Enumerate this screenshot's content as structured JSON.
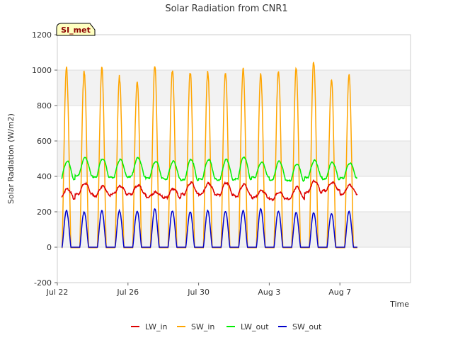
{
  "chart_data": {
    "type": "line",
    "title": "Solar Radiation from CNR1",
    "xlabel": "Time",
    "ylabel": "Solar Radiation (W/m2)",
    "badge": "SI_met",
    "xlim": [
      0,
      20
    ],
    "ylim": [
      -200,
      1200
    ],
    "xticks": [
      {
        "x": 0,
        "label": "Jul 22"
      },
      {
        "x": 4,
        "label": "Jul 26"
      },
      {
        "x": 8,
        "label": "Jul 30"
      },
      {
        "x": 12,
        "label": "Aug 3"
      },
      {
        "x": 16,
        "label": "Aug 7"
      }
    ],
    "yticks": [
      -200,
      0,
      200,
      400,
      600,
      800,
      1000,
      1200
    ],
    "x_unit": "days since Jul 22",
    "day_start": 0.25,
    "day_end": 17.0,
    "sw_in_peaks": [
      1005,
      1000,
      1005,
      960,
      945,
      1015,
      1005,
      995,
      980,
      1000,
      1000,
      970,
      1005,
      1005,
      1050,
      950,
      965
    ],
    "lw_out_peaks": [
      485,
      505,
      500,
      495,
      505,
      485,
      485,
      495,
      495,
      495,
      510,
      480,
      485,
      470,
      490,
      480,
      475
    ],
    "lw_out_trough": [
      380,
      405,
      395,
      395,
      400,
      390,
      385,
      380,
      385,
      380,
      385,
      395,
      380,
      375,
      395,
      385,
      390
    ],
    "lw_in_peaks": [
      330,
      360,
      345,
      345,
      350,
      310,
      330,
      365,
      360,
      365,
      355,
      320,
      310,
      340,
      375,
      365,
      350
    ],
    "lw_in_trough": [
      275,
      300,
      290,
      300,
      300,
      285,
      280,
      300,
      300,
      295,
      290,
      280,
      270,
      275,
      310,
      320,
      300
    ],
    "sw_out_peaks": [
      205,
      200,
      205,
      205,
      205,
      215,
      205,
      200,
      205,
      205,
      205,
      215,
      205,
      195,
      195,
      190,
      200
    ],
    "series": [
      {
        "name": "LW_in",
        "color": "#dd0000"
      },
      {
        "name": "SW_in",
        "color": "#ffa500"
      },
      {
        "name": "LW_out",
        "color": "#00ee00"
      },
      {
        "name": "SW_out",
        "color": "#0000cc"
      }
    ]
  }
}
